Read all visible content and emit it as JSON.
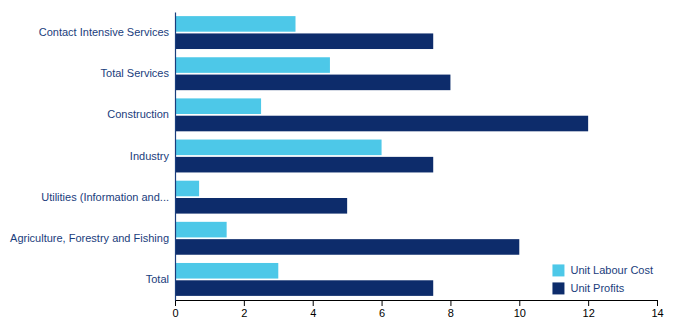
{
  "chart_data": {
    "type": "bar",
    "orientation": "horizontal",
    "categories": [
      "Contact Intensive Services",
      "Total Services",
      "Construction",
      "Industry",
      "Utilities (Information and...",
      "Agriculture, Forestry and Fishing",
      "Total"
    ],
    "series": [
      {
        "name": "Unit Labour Cost",
        "color": "#4DC8E8",
        "values": [
          3.5,
          4.5,
          2.5,
          6.0,
          0.7,
          1.5,
          3.0
        ]
      },
      {
        "name": "Unit Profits",
        "color": "#0D2C6B",
        "values": [
          7.5,
          8.0,
          12.0,
          7.5,
          5.0,
          10.0,
          7.5
        ]
      }
    ],
    "xlim": [
      0,
      14
    ],
    "xticks": [
      0,
      2,
      4,
      6,
      8,
      10,
      12,
      14
    ],
    "grid": false,
    "legend": "lower right"
  }
}
